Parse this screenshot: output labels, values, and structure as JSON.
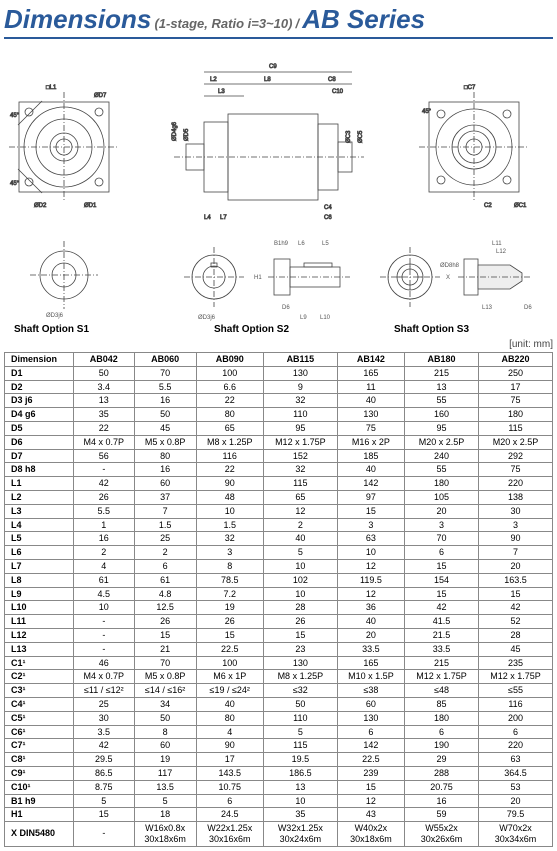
{
  "title": {
    "main": "Dimensions",
    "sub": "(1-stage, Ratio i=3~10)",
    "sep": "/",
    "series": "AB Series"
  },
  "colors": {
    "brand": "#2a5a9a",
    "rule": "#2a5a9a",
    "diagram_stroke": "#444444",
    "grid": "#888888",
    "text": "#000000",
    "muted": "#666666"
  },
  "shaft_labels": {
    "s1": "Shaft Option S1",
    "s2": "Shaft Option S2",
    "s3": "Shaft Option S3"
  },
  "unit_label": "[unit: mm]",
  "table": {
    "header": [
      "Dimension",
      "AB042",
      "AB060",
      "AB090",
      "AB115",
      "AB142",
      "AB180",
      "AB220"
    ],
    "rows": [
      [
        "D1",
        "50",
        "70",
        "100",
        "130",
        "165",
        "215",
        "250"
      ],
      [
        "D2",
        "3.4",
        "5.5",
        "6.6",
        "9",
        "11",
        "13",
        "17"
      ],
      [
        "D3 j6",
        "13",
        "16",
        "22",
        "32",
        "40",
        "55",
        "75"
      ],
      [
        "D4 g6",
        "35",
        "50",
        "80",
        "110",
        "130",
        "160",
        "180"
      ],
      [
        "D5",
        "22",
        "45",
        "65",
        "95",
        "75",
        "95",
        "115"
      ],
      [
        "D6",
        "M4 x 0.7P",
        "M5 x 0.8P",
        "M8 x 1.25P",
        "M12 x 1.75P",
        "M16 x 2P",
        "M20 x 2.5P",
        "M20 x 2.5P"
      ],
      [
        "D7",
        "56",
        "80",
        "116",
        "152",
        "185",
        "240",
        "292"
      ],
      [
        "D8 h8",
        "-",
        "16",
        "22",
        "32",
        "40",
        "55",
        "75"
      ],
      [
        "L1",
        "42",
        "60",
        "90",
        "115",
        "142",
        "180",
        "220"
      ],
      [
        "L2",
        "26",
        "37",
        "48",
        "65",
        "97",
        "105",
        "138"
      ],
      [
        "L3",
        "5.5",
        "7",
        "10",
        "12",
        "15",
        "20",
        "30"
      ],
      [
        "L4",
        "1",
        "1.5",
        "1.5",
        "2",
        "3",
        "3",
        "3"
      ],
      [
        "L5",
        "16",
        "25",
        "32",
        "40",
        "63",
        "70",
        "90"
      ],
      [
        "L6",
        "2",
        "2",
        "3",
        "5",
        "10",
        "6",
        "7"
      ],
      [
        "L7",
        "4",
        "6",
        "8",
        "10",
        "12",
        "15",
        "20"
      ],
      [
        "L8",
        "61",
        "61",
        "78.5",
        "102",
        "119.5",
        "154",
        "163.5"
      ],
      [
        "L9",
        "4.5",
        "4.8",
        "7.2",
        "10",
        "12",
        "15",
        "15"
      ],
      [
        "L10",
        "10",
        "12.5",
        "19",
        "28",
        "36",
        "42",
        "42"
      ],
      [
        "L11",
        "-",
        "26",
        "26",
        "26",
        "40",
        "41.5",
        "52"
      ],
      [
        "L12",
        "-",
        "15",
        "15",
        "15",
        "20",
        "21.5",
        "28"
      ],
      [
        "L13",
        "-",
        "21",
        "22.5",
        "23",
        "33.5",
        "33.5",
        "45"
      ],
      [
        "C1¹",
        "46",
        "70",
        "100",
        "130",
        "165",
        "215",
        "235"
      ],
      [
        "C2¹",
        "M4 x 0.7P",
        "M5 x 0.8P",
        "M6 x 1P",
        "M8 x 1.25P",
        "M10 x 1.5P",
        "M12 x 1.75P",
        "M12 x 1.75P"
      ],
      [
        "C3¹",
        "≤11 / ≤12²",
        "≤14 / ≤16²",
        "≤19 / ≤24²",
        "≤32",
        "≤38",
        "≤48",
        "≤55"
      ],
      [
        "C4¹",
        "25",
        "34",
        "40",
        "50",
        "60",
        "85",
        "116"
      ],
      [
        "C5¹",
        "30",
        "50",
        "80",
        "110",
        "130",
        "180",
        "200"
      ],
      [
        "C6¹",
        "3.5",
        "8",
        "4",
        "5",
        "6",
        "6",
        "6"
      ],
      [
        "C7¹",
        "42",
        "60",
        "90",
        "115",
        "142",
        "190",
        "220"
      ],
      [
        "C8¹",
        "29.5",
        "19",
        "17",
        "19.5",
        "22.5",
        "29",
        "63"
      ],
      [
        "C9¹",
        "86.5",
        "117",
        "143.5",
        "186.5",
        "239",
        "288",
        "364.5"
      ],
      [
        "C10¹",
        "8.75",
        "13.5",
        "10.75",
        "13",
        "15",
        "20.75",
        "53"
      ],
      [
        "B1 h9",
        "5",
        "5",
        "6",
        "10",
        "12",
        "16",
        "20"
      ],
      [
        "H1",
        "15",
        "18",
        "24.5",
        "35",
        "43",
        "59",
        "79.5"
      ],
      [
        "X DIN5480",
        "-",
        "W16x0.8x 30x18x6m",
        "W22x1.25x 30x16x6m",
        "W32x1.25x 30x24x6m",
        "W40x2x 30x18x6m",
        "W55x2x 30x26x6m",
        "W70x2x 30x34x6m"
      ]
    ]
  },
  "diagram_labels": {
    "top_front": [
      "□L1",
      "ØD7",
      "45°",
      "45°",
      "ØD2",
      "ØD1"
    ],
    "top_side": [
      "C9",
      "L2",
      "L8",
      "L3",
      "C8",
      "C10",
      "ØD4g6",
      "ØD5",
      "L4",
      "L7",
      "C6",
      "C4",
      "ØC3",
      "ØC5"
    ],
    "top_rear": [
      "□C7",
      "45°",
      "C2",
      "ØC1"
    ],
    "shaft_s1": [
      "ØD3j6"
    ],
    "shaft_s2": [
      "B1h9",
      "L6",
      "L5",
      "H1",
      "D6",
      "ØD3j6",
      "L9",
      "L10"
    ],
    "shaft_s3": [
      "L11",
      "L12",
      "ØD8h8",
      "X",
      "L13",
      "D6"
    ]
  }
}
